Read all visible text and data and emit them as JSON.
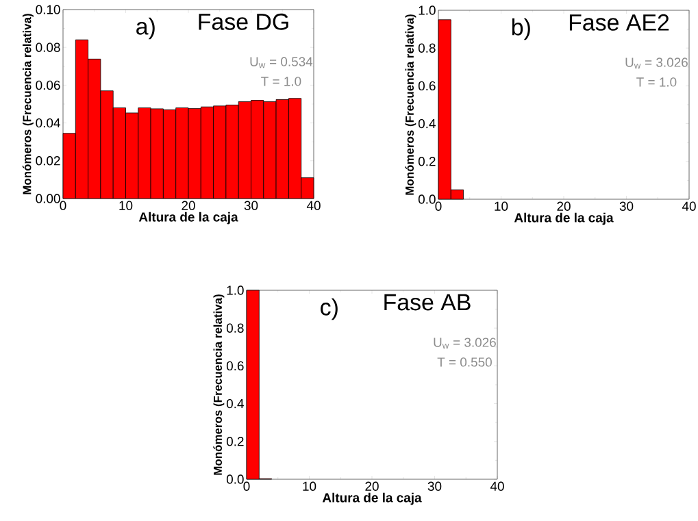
{
  "chart_data": [
    {
      "type": "histogram",
      "title": "Fase DG",
      "xlabel": "Altura de la caja",
      "ylabel": "Monómeros (Frecuencia relativa)",
      "annotations": [
        "a)",
        "U$_{w}$ = 0.534",
        "T = 1.0"
      ],
      "bins": [
        0,
        2,
        4,
        6,
        8,
        10,
        12,
        14,
        16,
        18,
        20,
        22,
        24,
        26,
        28,
        30,
        32,
        34,
        36,
        38,
        40
      ],
      "values": [
        0.0345,
        0.084,
        0.0738,
        0.057,
        0.048,
        0.0453,
        0.048,
        0.0475,
        0.047,
        0.048,
        0.0476,
        0.0485,
        0.049,
        0.0495,
        0.0513,
        0.052,
        0.0513,
        0.0524,
        0.053,
        0.011
      ],
      "color": "#ff0000",
      "xlim": [
        0,
        40
      ],
      "ylim": [
        0,
        0.1
      ],
      "xticks": [
        0,
        10,
        20,
        30,
        40
      ],
      "yticks": [
        {
          "value": 0,
          "label": "0.00"
        },
        {
          "value": 0.02,
          "label": "0.02"
        },
        {
          "value": 0.04,
          "label": "0.04"
        },
        {
          "value": 0.06,
          "label": "0.06"
        },
        {
          "value": 0.08,
          "label": "0.08"
        },
        {
          "value": 0.1,
          "label": "0.10"
        }
      ]
    },
    {
      "type": "histogram",
      "title": "Fase AE2",
      "xlabel": "Altura de la caja",
      "ylabel": "Monómeros (Frecuencia relativa)",
      "annotations": [
        "b)",
        "U$_{w}$ = 3.026",
        "T = 1.0"
      ],
      "bins": [
        0,
        2,
        4
      ],
      "values": [
        0.95,
        0.05
      ],
      "color": "#ff0000",
      "xlim": [
        0,
        40
      ],
      "ylim": [
        0,
        1
      ],
      "xticks": [
        0,
        10,
        20,
        30,
        40
      ],
      "yticks": [
        {
          "value": 0,
          "label": "0.0"
        },
        {
          "value": 0.2,
          "label": "0.2"
        },
        {
          "value": 0.4,
          "label": "0.4"
        },
        {
          "value": 0.6,
          "label": "0.6"
        },
        {
          "value": 0.8,
          "label": "0.8"
        },
        {
          "value": 1,
          "label": "1.0"
        }
      ]
    },
    {
      "type": "histogram",
      "title": "Fase AB",
      "xlabel": "Altura de la caja",
      "ylabel": "Monómeros (Frecuencia relativa)",
      "annotations": [
        "c)",
        "U$_{w}$ = 3.026",
        "T = 0.550"
      ],
      "bins": [
        0,
        2,
        4
      ],
      "values": [
        1.0,
        0.003
      ],
      "color": "#ff0000",
      "xlim": [
        0,
        40
      ],
      "ylim": [
        0,
        1
      ],
      "xticks": [
        0,
        10,
        20,
        30,
        40
      ],
      "yticks": [
        {
          "value": 0,
          "label": "0.0"
        },
        {
          "value": 0.2,
          "label": "0.2"
        },
        {
          "value": 0.4,
          "label": "0.4"
        },
        {
          "value": 0.6,
          "label": "0.6"
        },
        {
          "value": 0.8,
          "label": "0.8"
        },
        {
          "value": 1,
          "label": "1.0"
        }
      ]
    }
  ]
}
